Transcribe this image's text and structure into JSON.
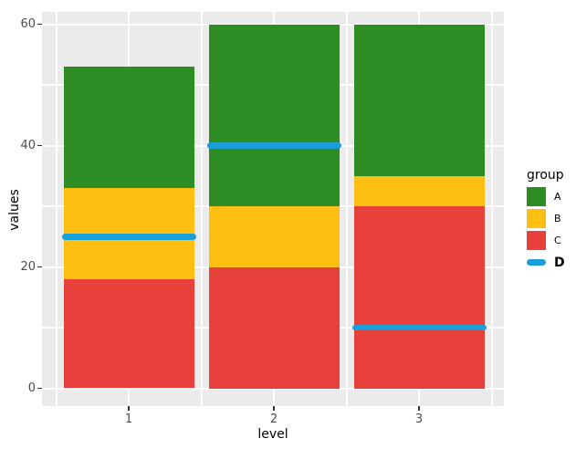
{
  "chart_data": {
    "type": "bar",
    "stacked": true,
    "xlabel": "level",
    "ylabel": "values",
    "categories": [
      "1",
      "2",
      "3"
    ],
    "series": [
      {
        "name": "A",
        "color": "#2d8c23",
        "values": [
          20,
          30,
          25
        ]
      },
      {
        "name": "B",
        "color": "#fdbf12",
        "values": [
          15,
          10,
          5
        ]
      },
      {
        "name": "C",
        "color": "#e8413c",
        "values": [
          18,
          20,
          30
        ]
      }
    ],
    "stack_order_bottom_to_top": [
      "C",
      "B",
      "A"
    ],
    "overlay_line_series": {
      "name": "D",
      "color": "#1a9fd8",
      "values": [
        25,
        40,
        10
      ]
    },
    "stack_totals": [
      53,
      60,
      60
    ],
    "ylim": [
      0,
      60
    ],
    "y_major_ticks": [
      0,
      20,
      40,
      60
    ],
    "y_minor_ticks": [
      10,
      30,
      50
    ],
    "legend": {
      "title": "group",
      "entries": [
        "A",
        "B",
        "C",
        "D"
      ],
      "position": "right"
    },
    "grid": true,
    "colors": {
      "panel_background": "#ebebeb",
      "grid_major": "#ffffff",
      "grid_minor": "#ffffff",
      "axis_text": "#4d4d4d",
      "tick_mark": "#333333"
    }
  }
}
